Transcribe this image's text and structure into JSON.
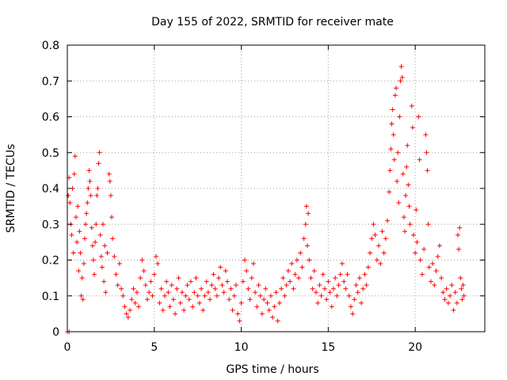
{
  "chart_data": {
    "type": "scatter",
    "title": "Day 155 of 2022, SRMTID for receiver mate",
    "xlabel": "GPS time / hours",
    "ylabel": "SRMTID / TECUs",
    "xlim": [
      0,
      24
    ],
    "ylim": [
      0,
      0.8
    ],
    "xticks": [
      0,
      5,
      10,
      15,
      20
    ],
    "xtick_labels": [
      "0",
      "5",
      "10",
      "15",
      "20"
    ],
    "yticks": [
      0,
      0.1,
      0.2,
      0.3,
      0.4,
      0.5,
      0.6,
      0.7,
      0.8
    ],
    "ytick_labels": [
      "0",
      "0.1",
      "0.2",
      "0.3",
      "0.4",
      "0.5",
      "0.6",
      "0.7",
      "0.8"
    ],
    "grid": true,
    "marker": "+",
    "marker_color": "#ff0000",
    "series": [
      {
        "name": "SRMTID",
        "points": [
          [
            0.0,
            0.0
          ],
          [
            0.1,
            0.0
          ],
          [
            0.05,
            0.38
          ],
          [
            0.1,
            0.43
          ],
          [
            0.15,
            0.36
          ],
          [
            0.2,
            0.3
          ],
          [
            0.25,
            0.27
          ],
          [
            0.3,
            0.4
          ],
          [
            0.35,
            0.22
          ],
          [
            0.4,
            0.44
          ],
          [
            0.45,
            0.49
          ],
          [
            0.5,
            0.32
          ],
          [
            0.55,
            0.25
          ],
          [
            0.6,
            0.35
          ],
          [
            0.65,
            0.17
          ],
          [
            0.7,
            0.28
          ],
          [
            0.75,
            0.22
          ],
          [
            0.8,
            0.1
          ],
          [
            0.85,
            0.15
          ],
          [
            0.9,
            0.09
          ],
          [
            0.95,
            0.19
          ],
          [
            1.0,
            0.26
          ],
          [
            1.05,
            0.3
          ],
          [
            1.1,
            0.33
          ],
          [
            1.15,
            0.36
          ],
          [
            1.2,
            0.4
          ],
          [
            1.25,
            0.45
          ],
          [
            1.3,
            0.42
          ],
          [
            1.35,
            0.38
          ],
          [
            1.4,
            0.29
          ],
          [
            1.45,
            0.24
          ],
          [
            1.5,
            0.2
          ],
          [
            1.55,
            0.16
          ],
          [
            1.6,
            0.25
          ],
          [
            1.65,
            0.3
          ],
          [
            1.7,
            0.38
          ],
          [
            1.75,
            0.4
          ],
          [
            1.8,
            0.47
          ],
          [
            1.85,
            0.5
          ],
          [
            1.9,
            0.27
          ],
          [
            1.95,
            0.21
          ],
          [
            2.0,
            0.18
          ],
          [
            2.05,
            0.3
          ],
          [
            2.1,
            0.14
          ],
          [
            2.15,
            0.24
          ],
          [
            2.2,
            0.11
          ],
          [
            2.3,
            0.22
          ],
          [
            2.4,
            0.44
          ],
          [
            2.45,
            0.42
          ],
          [
            2.5,
            0.38
          ],
          [
            2.55,
            0.32
          ],
          [
            2.6,
            0.26
          ],
          [
            2.7,
            0.21
          ],
          [
            2.8,
            0.16
          ],
          [
            2.9,
            0.13
          ],
          [
            3.0,
            0.19
          ],
          [
            3.1,
            0.12
          ],
          [
            3.2,
            0.1
          ],
          [
            3.3,
            0.07
          ],
          [
            3.4,
            0.05
          ],
          [
            3.5,
            0.04
          ],
          [
            3.6,
            0.06
          ],
          [
            3.7,
            0.09
          ],
          [
            3.8,
            0.12
          ],
          [
            3.9,
            0.08
          ],
          [
            4.0,
            0.11
          ],
          [
            4.1,
            0.07
          ],
          [
            4.2,
            0.15
          ],
          [
            4.3,
            0.2
          ],
          [
            4.4,
            0.17
          ],
          [
            4.5,
            0.13
          ],
          [
            4.6,
            0.09
          ],
          [
            4.7,
            0.11
          ],
          [
            4.8,
            0.14
          ],
          [
            4.9,
            0.1
          ],
          [
            5.0,
            0.16
          ],
          [
            5.1,
            0.21
          ],
          [
            5.2,
            0.19
          ],
          [
            5.3,
            0.08
          ],
          [
            5.4,
            0.12
          ],
          [
            5.5,
            0.06
          ],
          [
            5.6,
            0.1
          ],
          [
            5.7,
            0.14
          ],
          [
            5.8,
            0.11
          ],
          [
            5.9,
            0.07
          ],
          [
            6.0,
            0.13
          ],
          [
            6.1,
            0.09
          ],
          [
            6.2,
            0.05
          ],
          [
            6.3,
            0.12
          ],
          [
            6.4,
            0.15
          ],
          [
            6.5,
            0.08
          ],
          [
            6.6,
            0.11
          ],
          [
            6.7,
            0.06
          ],
          [
            6.8,
            0.1
          ],
          [
            6.9,
            0.13
          ],
          [
            7.0,
            0.09
          ],
          [
            7.1,
            0.14
          ],
          [
            7.2,
            0.07
          ],
          [
            7.3,
            0.11
          ],
          [
            7.4,
            0.15
          ],
          [
            7.5,
            0.1
          ],
          [
            7.6,
            0.08
          ],
          [
            7.7,
            0.12
          ],
          [
            7.8,
            0.06
          ],
          [
            7.9,
            0.1
          ],
          [
            8.0,
            0.14
          ],
          [
            8.1,
            0.11
          ],
          [
            8.2,
            0.09
          ],
          [
            8.3,
            0.13
          ],
          [
            8.4,
            0.16
          ],
          [
            8.5,
            0.12
          ],
          [
            8.6,
            0.1
          ],
          [
            8.7,
            0.15
          ],
          [
            8.8,
            0.18
          ],
          [
            8.9,
            0.13
          ],
          [
            9.0,
            0.11
          ],
          [
            9.1,
            0.17
          ],
          [
            9.2,
            0.14
          ],
          [
            9.3,
            0.09
          ],
          [
            9.4,
            0.12
          ],
          [
            9.5,
            0.06
          ],
          [
            9.6,
            0.1
          ],
          [
            9.7,
            0.13
          ],
          [
            9.8,
            0.05
          ],
          [
            9.9,
            0.03
          ],
          [
            10.0,
            0.08
          ],
          [
            10.1,
            0.14
          ],
          [
            10.2,
            0.2
          ],
          [
            10.3,
            0.17
          ],
          [
            10.4,
            0.12
          ],
          [
            10.5,
            0.09
          ],
          [
            10.6,
            0.15
          ],
          [
            10.7,
            0.19
          ],
          [
            10.8,
            0.11
          ],
          [
            10.9,
            0.07
          ],
          [
            11.0,
            0.13
          ],
          [
            11.1,
            0.1
          ],
          [
            11.2,
            0.05
          ],
          [
            11.3,
            0.09
          ],
          [
            11.4,
            0.12
          ],
          [
            11.5,
            0.08
          ],
          [
            11.6,
            0.06
          ],
          [
            11.7,
            0.1
          ],
          [
            11.8,
            0.04
          ],
          [
            11.9,
            0.07
          ],
          [
            12.0,
            0.11
          ],
          [
            12.1,
            0.03
          ],
          [
            12.2,
            0.08
          ],
          [
            12.3,
            0.12
          ],
          [
            12.4,
            0.15
          ],
          [
            12.5,
            0.1
          ],
          [
            12.6,
            0.13
          ],
          [
            12.7,
            0.17
          ],
          [
            12.8,
            0.14
          ],
          [
            12.9,
            0.19
          ],
          [
            13.0,
            0.12
          ],
          [
            13.1,
            0.16
          ],
          [
            13.2,
            0.2
          ],
          [
            13.3,
            0.15
          ],
          [
            13.4,
            0.22
          ],
          [
            13.5,
            0.18
          ],
          [
            13.6,
            0.26
          ],
          [
            13.7,
            0.3
          ],
          [
            13.75,
            0.35
          ],
          [
            13.8,
            0.24
          ],
          [
            13.85,
            0.33
          ],
          [
            13.9,
            0.2
          ],
          [
            14.0,
            0.15
          ],
          [
            14.1,
            0.12
          ],
          [
            14.2,
            0.17
          ],
          [
            14.3,
            0.11
          ],
          [
            14.4,
            0.08
          ],
          [
            14.5,
            0.13
          ],
          [
            14.6,
            0.1
          ],
          [
            14.7,
            0.16
          ],
          [
            14.8,
            0.12
          ],
          [
            14.9,
            0.09
          ],
          [
            15.0,
            0.14
          ],
          [
            15.1,
            0.11
          ],
          [
            15.2,
            0.07
          ],
          [
            15.3,
            0.12
          ],
          [
            15.4,
            0.15
          ],
          [
            15.5,
            0.1
          ],
          [
            15.6,
            0.13
          ],
          [
            15.7,
            0.16
          ],
          [
            15.8,
            0.19
          ],
          [
            15.9,
            0.14
          ],
          [
            16.0,
            0.12
          ],
          [
            16.1,
            0.16
          ],
          [
            16.2,
            0.1
          ],
          [
            16.3,
            0.07
          ],
          [
            16.4,
            0.05
          ],
          [
            16.5,
            0.09
          ],
          [
            16.6,
            0.13
          ],
          [
            16.7,
            0.11
          ],
          [
            16.8,
            0.15
          ],
          [
            16.9,
            0.08
          ],
          [
            17.0,
            0.12
          ],
          [
            17.1,
            0.16
          ],
          [
            17.2,
            0.13
          ],
          [
            17.3,
            0.18
          ],
          [
            17.4,
            0.22
          ],
          [
            17.5,
            0.26
          ],
          [
            17.6,
            0.3
          ],
          [
            17.7,
            0.27
          ],
          [
            17.8,
            0.2
          ],
          [
            17.9,
            0.24
          ],
          [
            18.0,
            0.19
          ],
          [
            18.1,
            0.28
          ],
          [
            18.2,
            0.22
          ],
          [
            18.3,
            0.26
          ],
          [
            18.4,
            0.31
          ],
          [
            18.5,
            0.39
          ],
          [
            18.55,
            0.45
          ],
          [
            18.6,
            0.51
          ],
          [
            18.65,
            0.58
          ],
          [
            18.7,
            0.62
          ],
          [
            18.75,
            0.55
          ],
          [
            18.8,
            0.48
          ],
          [
            18.85,
            0.66
          ],
          [
            18.9,
            0.68
          ],
          [
            18.95,
            0.42
          ],
          [
            19.0,
            0.5
          ],
          [
            19.05,
            0.36
          ],
          [
            19.1,
            0.6
          ],
          [
            19.15,
            0.7
          ],
          [
            19.2,
            0.74
          ],
          [
            19.25,
            0.71
          ],
          [
            19.3,
            0.44
          ],
          [
            19.35,
            0.32
          ],
          [
            19.4,
            0.28
          ],
          [
            19.45,
            0.38
          ],
          [
            19.5,
            0.46
          ],
          [
            19.55,
            0.52
          ],
          [
            19.6,
            0.41
          ],
          [
            19.65,
            0.35
          ],
          [
            19.7,
            0.3
          ],
          [
            19.8,
            0.63
          ],
          [
            19.85,
            0.57
          ],
          [
            19.9,
            0.27
          ],
          [
            20.0,
            0.22
          ],
          [
            20.05,
            0.34
          ],
          [
            20.1,
            0.25
          ],
          [
            20.2,
            0.6
          ],
          [
            20.25,
            0.48
          ],
          [
            20.3,
            0.2
          ],
          [
            20.4,
            0.16
          ],
          [
            20.5,
            0.23
          ],
          [
            20.6,
            0.55
          ],
          [
            20.65,
            0.5
          ],
          [
            20.7,
            0.45
          ],
          [
            20.75,
            0.3
          ],
          [
            20.8,
            0.18
          ],
          [
            20.9,
            0.14
          ],
          [
            21.0,
            0.19
          ],
          [
            21.1,
            0.13
          ],
          [
            21.2,
            0.17
          ],
          [
            21.3,
            0.21
          ],
          [
            21.4,
            0.24
          ],
          [
            21.5,
            0.15
          ],
          [
            21.6,
            0.11
          ],
          [
            21.7,
            0.09
          ],
          [
            21.8,
            0.12
          ],
          [
            21.9,
            0.08
          ],
          [
            22.0,
            0.1
          ],
          [
            22.1,
            0.13
          ],
          [
            22.2,
            0.06
          ],
          [
            22.3,
            0.11
          ],
          [
            22.4,
            0.08
          ],
          [
            22.45,
            0.27
          ],
          [
            22.5,
            0.23
          ],
          [
            22.55,
            0.29
          ],
          [
            22.6,
            0.15
          ],
          [
            22.65,
            0.12
          ],
          [
            22.7,
            0.09
          ],
          [
            22.75,
            0.13
          ],
          [
            22.8,
            0.1
          ]
        ]
      }
    ]
  }
}
